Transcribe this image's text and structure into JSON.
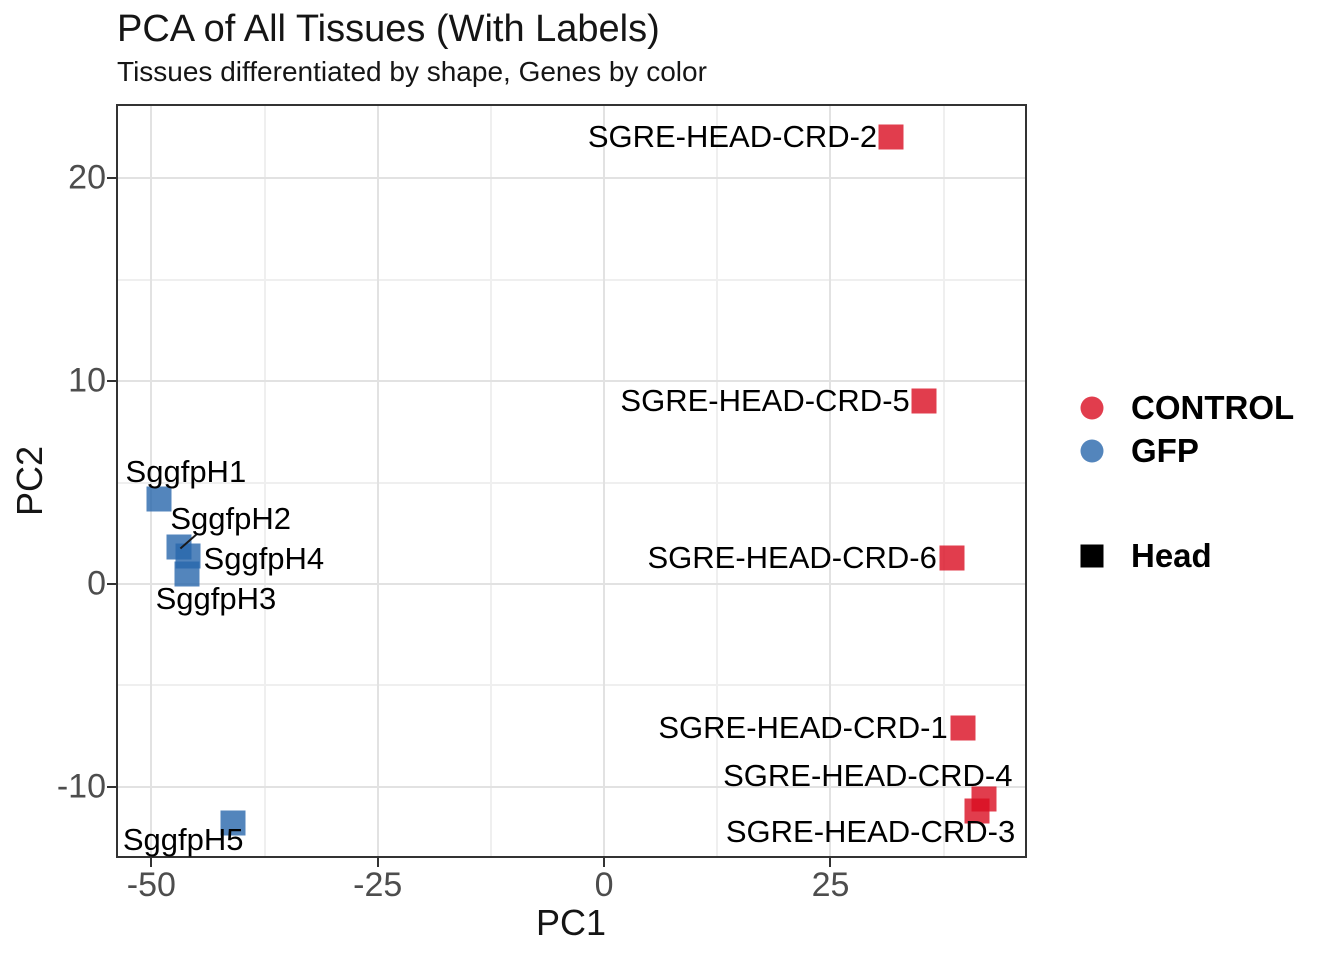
{
  "title": "PCA of All Tissues (With Labels)",
  "subtitle": "Tissues differentiated by shape, Genes by color",
  "axes": {
    "x_label": "PC1",
    "y_label": "PC2"
  },
  "legend": {
    "color_items": [
      {
        "label": "CONTROL",
        "color": "rgba(217,13,33,0.8)"
      },
      {
        "label": "GFP",
        "color": "rgba(40,103,171,0.8)"
      }
    ],
    "shape_items": [
      {
        "label": "Head",
        "color": "#000000"
      }
    ]
  },
  "style_colors": {
    "control_red": "#E03D4D",
    "gfp_blue": "#5385BC",
    "tick_text": "#4D4D4D",
    "grid_major": "#E2E2E2",
    "grid_minor": "#EFEFEF",
    "panel_border": "#333333"
  },
  "chart_data": {
    "type": "scatter",
    "title": "PCA of All Tissues (With Labels)",
    "subtitle": "Tissues differentiated by shape, Genes by color",
    "xlabel": "PC1",
    "ylabel": "PC2",
    "xlim": [
      -53.9,
      46.7
    ],
    "ylim": [
      -13.5,
      23.65
    ],
    "x_ticks": [
      -50,
      -25,
      0,
      25
    ],
    "y_ticks": [
      -10,
      0,
      10,
      20
    ],
    "x_minor_ticks": [
      -37.5,
      -12.5,
      12.5,
      37.5
    ],
    "y_minor_ticks": [
      -5,
      5,
      15
    ],
    "grid": true,
    "legend_position": "right",
    "point_shape": "square",
    "series": [
      {
        "name": "CONTROL",
        "color": "rgba(217,13,33,0.8)",
        "points": [
          {
            "label": "SGRE-HEAD-CRD-2",
            "x": 31.7,
            "y": 22.0,
            "anchor": "end",
            "dx": -14,
            "dy": 0
          },
          {
            "label": "SGRE-HEAD-CRD-5",
            "x": 35.3,
            "y": 9.0,
            "anchor": "end",
            "dx": -14,
            "dy": 0
          },
          {
            "label": "SGRE-HEAD-CRD-6",
            "x": 38.4,
            "y": 1.3,
            "anchor": "end",
            "dx": -15,
            "dy": 0
          },
          {
            "label": "SGRE-HEAD-CRD-1",
            "x": 39.6,
            "y": -7.1,
            "anchor": "end",
            "dx": -15,
            "dy": 0
          },
          {
            "label": "SGRE-HEAD-CRD-4",
            "x": 42.0,
            "y": -10.6,
            "anchor": "end",
            "dx": 28,
            "dy": -23
          },
          {
            "label": "SGRE-HEAD-CRD-3",
            "x": 41.2,
            "y": -11.2,
            "anchor": "end",
            "dx": 38,
            "dy": 21
          }
        ]
      },
      {
        "name": "GFP",
        "color": "rgba(40,103,171,0.8)",
        "points": [
          {
            "label": "SggfpH1",
            "x": -49.2,
            "y": 4.2,
            "anchor": "start",
            "dx": -33,
            "dy": -27
          },
          {
            "label": "SggfpH2",
            "x": -46.9,
            "y": 1.8,
            "anchor": "start",
            "dx": -9,
            "dy": -28,
            "leader": true
          },
          {
            "label": "SggfpH4",
            "x": -46.0,
            "y": 1.4,
            "anchor": "start",
            "dx": 16,
            "dy": 3
          },
          {
            "label": "SggfpH3",
            "x": -46.1,
            "y": 0.5,
            "anchor": "start",
            "dx": -31,
            "dy": 25
          },
          {
            "label": "SggfpH5",
            "x": -41.0,
            "y": -11.8,
            "anchor": "start",
            "dx": -110,
            "dy": 17
          }
        ]
      }
    ]
  }
}
